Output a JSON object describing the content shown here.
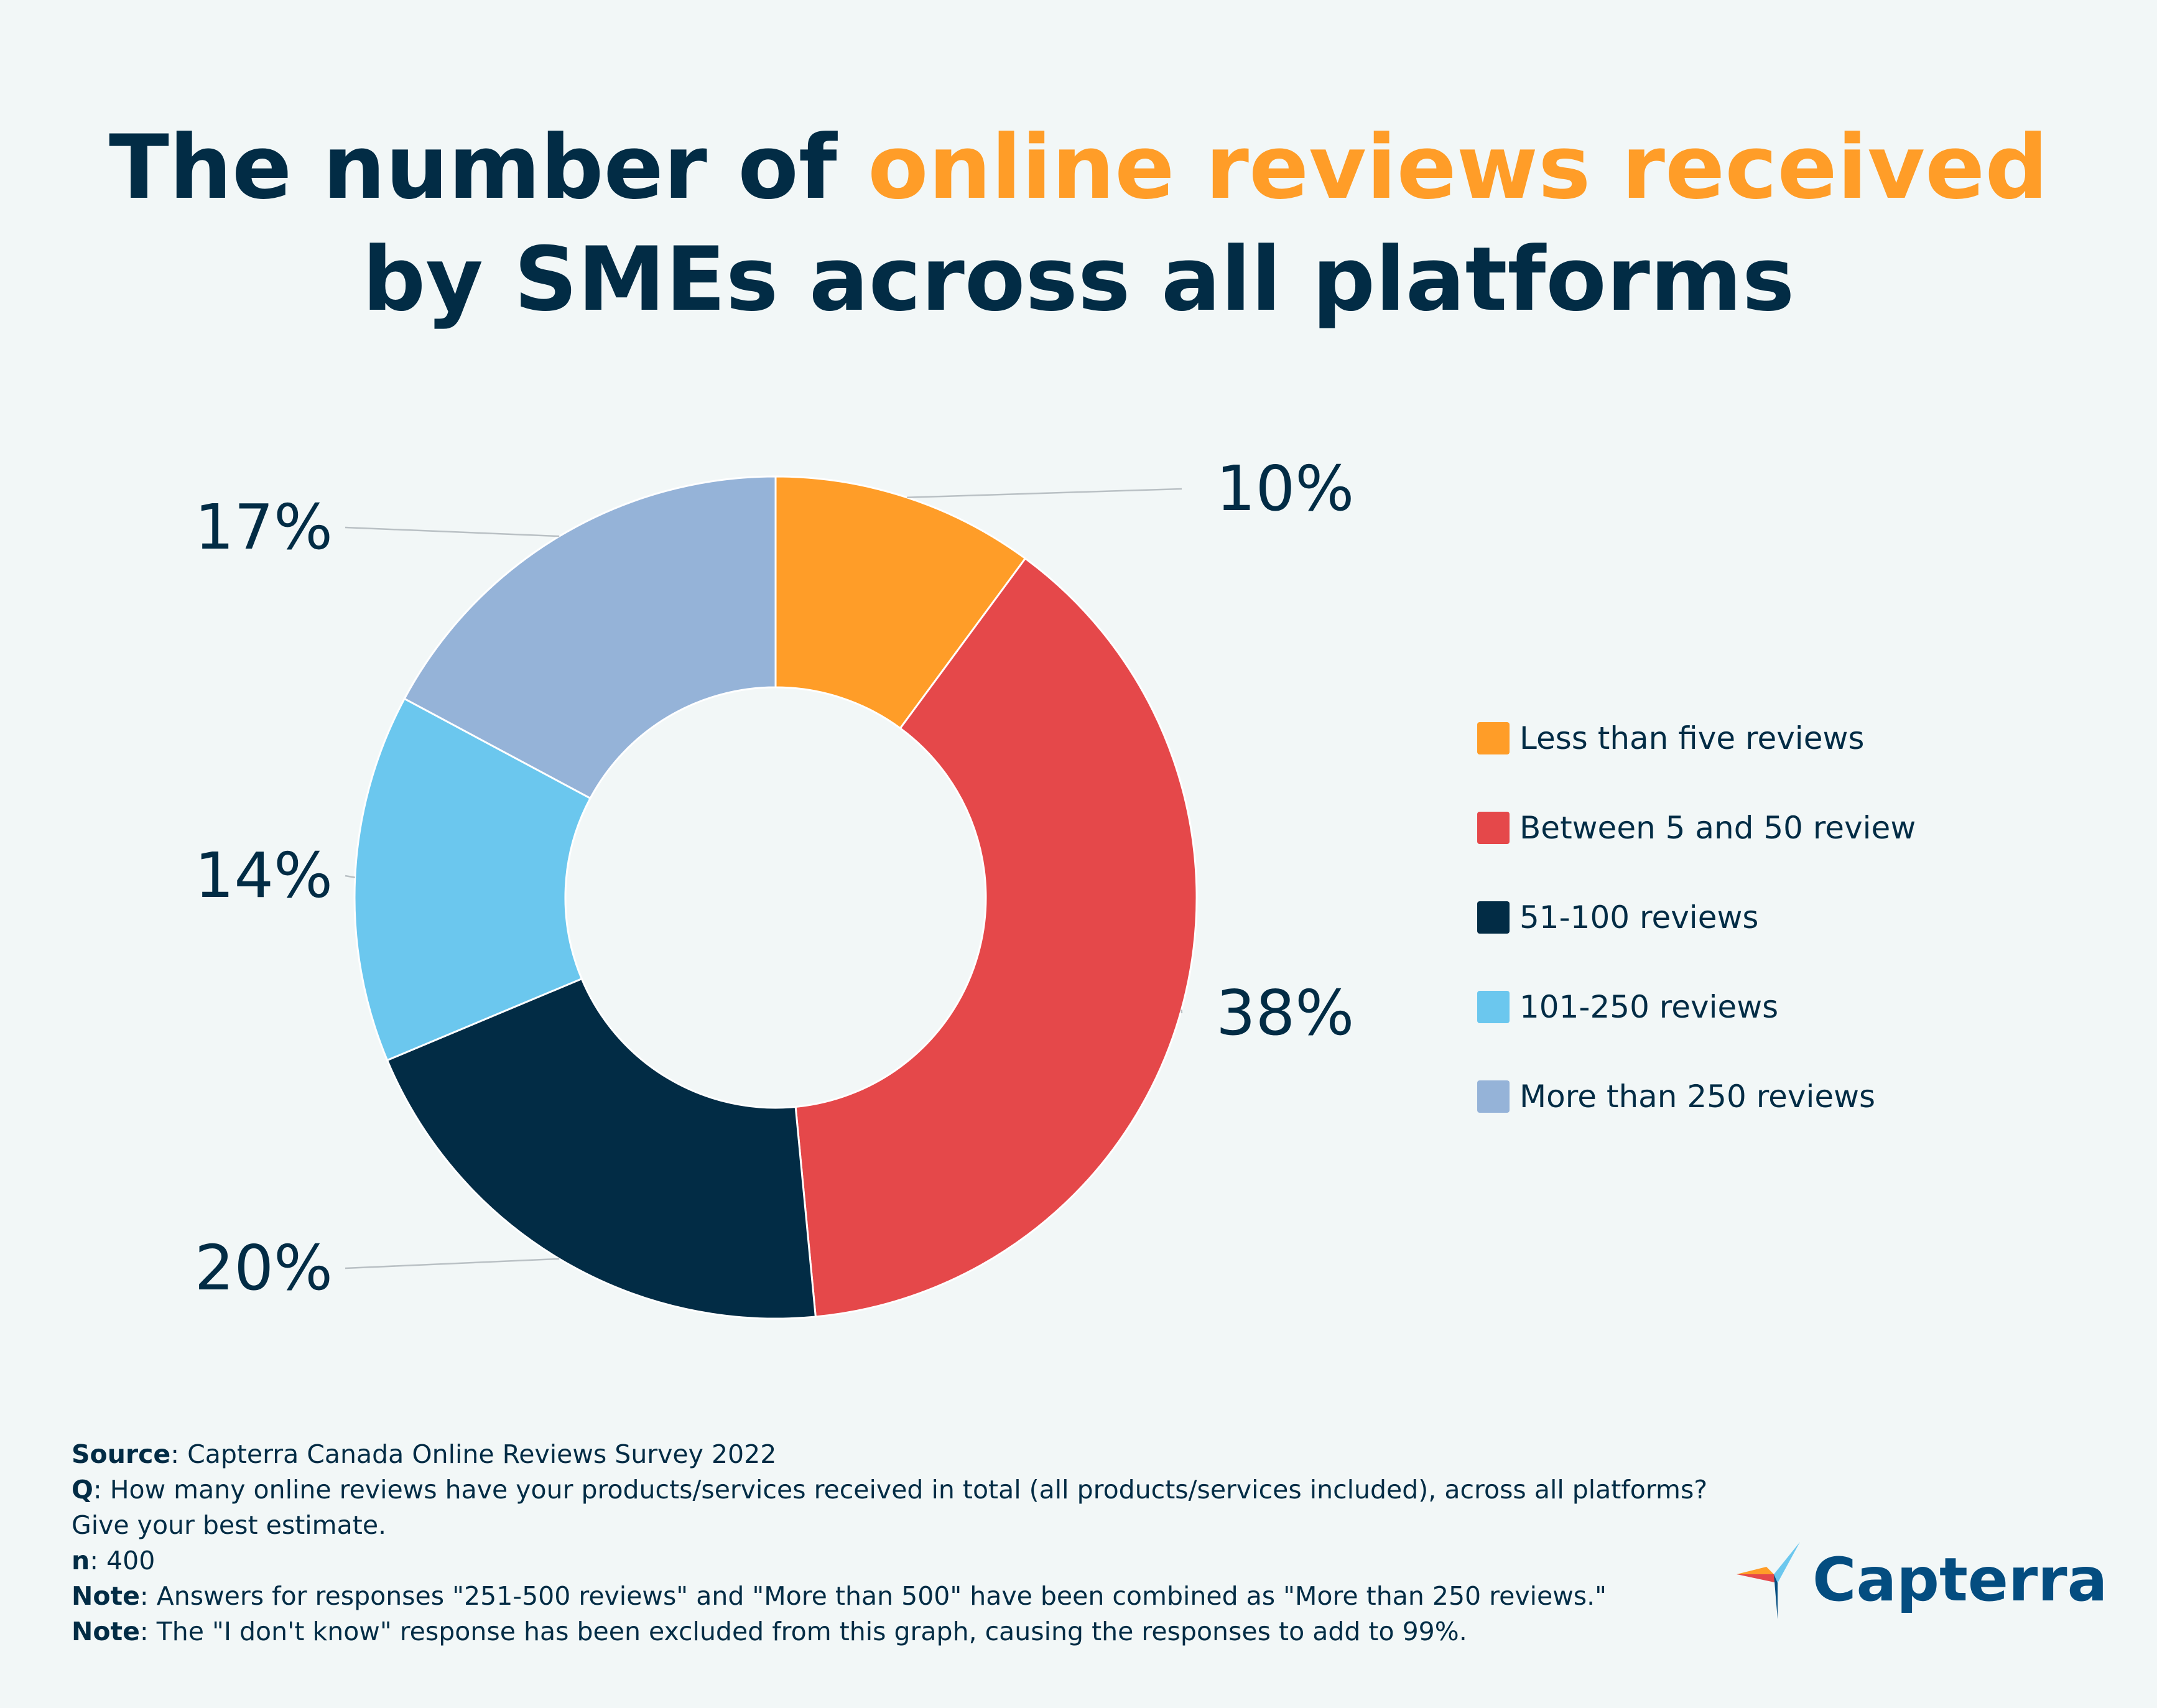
{
  "title": {
    "part1": "The number of ",
    "highlight": "online reviews received",
    "line2": "by SMEs across all platforms"
  },
  "chart_data": {
    "type": "pie",
    "style": "donut",
    "categories": [
      "Less than five reviews",
      "Between 5 and 50 review",
      "51-100 reviews",
      "101-250 reviews",
      "More than 250 reviews"
    ],
    "values": [
      10,
      38,
      20,
      14,
      17
    ],
    "labels": [
      "10%",
      "38%",
      "20%",
      "14%",
      "17%"
    ],
    "colors": [
      "#ff9d28",
      "#e5484a",
      "#022c45",
      "#6bc7ee",
      "#95b3d8"
    ],
    "legend_position": "right"
  },
  "notes": [
    {
      "key": "Source",
      "text": ": Capterra Canada Online Reviews Survey 2022"
    },
    {
      "key": "Q",
      "text": ": How many online reviews have your products/services received in total (all products/services included), across all platforms? Give your best estimate."
    },
    {
      "key": "n",
      "text": ": 400"
    },
    {
      "key": "Note",
      "text": ": Answers for responses \"251-500 reviews\" and \"More than 500\" have been combined as \"More than 250 reviews.\""
    },
    {
      "key": "Note",
      "text": ": The \"I don't know\" response has been excluded from this graph, causing the responses to add to 99%."
    }
  ],
  "logo": {
    "text": "Capterra",
    "icon": "capterra-arrow-icon"
  }
}
